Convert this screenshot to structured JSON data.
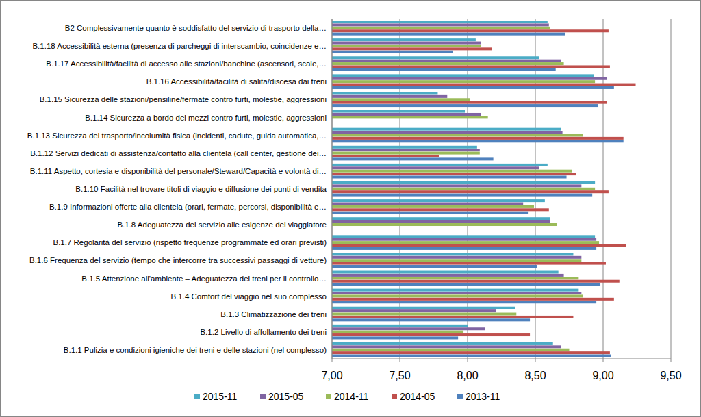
{
  "chart_data": {
    "type": "bar",
    "orientation": "horizontal",
    "grid": true,
    "legend": "bottom",
    "categories": [
      "B2 Complessivamente quanto è soddisfatto del servizio di trasporto della…",
      "B.1.18 Accessibilità esterna (presenza di parcheggi di interscambio, coincidenze e…",
      "B.1.17 Accessibilità/facilità di accesso alle stazioni/banchine (ascensori, scale,…",
      "B.1.16 Accessibilità/facilità di salita/discesa dai treni",
      "B.1.15 Sicurezza delle stazioni/pensiline/fermate contro furti, molestie, aggressioni",
      "B.1.14 Sicurezza a bordo dei mezzi contro furti, molestie, aggressioni",
      "B.1.13 Sicurezza del trasporto/incolumità fisica (incidenti, cadute, guida automatica,…",
      "B.1.12 Servizi dedicati di assistenza/contatto alla clientela (call center, gestione dei…",
      "B.1.11 Aspetto, cortesia e disponibilità del personale/Steward/Capacità e volontà di…",
      "B.1.10 Facilità nel trovare titoli di viaggio e diffusione dei punti di vendita",
      "B.1.9 Informazioni offerte alla clientela (orari, fermate, percorsi, disponibilità e…",
      "B.1.8 Adeguatezza del servizio alle esigenze del viaggiatore",
      "B.1.7 Regolarità del servizio (rispetto frequenze programmate ed orari previsti)",
      "B.1.6 Frequenza del servizio (tempo che intercorre tra successivi passaggi di vetture)",
      "B.1.5 Attenzione all'ambiente – Adeguatezza dei treni per il controllo…",
      "B.1.4 Comfort del viaggio nel suo complesso",
      "B.1.3 Climatizzazione dei treni",
      "B.1.2 Livello di affollamento dei treni",
      "B.1.1 Pulizia e condizioni igieniche dei treni e delle stazioni (nel complesso)"
    ],
    "series": [
      {
        "name": "2015-11",
        "color": "#4bacc6",
        "values": [
          8.59,
          8.06,
          8.53,
          8.93,
          7.78,
          7.98,
          8.69,
          8.07,
          8.59,
          8.94,
          8.57,
          8.61,
          8.94,
          8.78,
          8.67,
          8.82,
          8.35,
          8.0,
          8.63
        ]
      },
      {
        "name": "2015-05",
        "color": "#8064a2",
        "values": [
          8.6,
          8.1,
          8.69,
          9.03,
          7.85,
          8.1,
          8.7,
          8.09,
          8.53,
          8.84,
          8.41,
          8.61,
          8.95,
          8.84,
          8.71,
          8.84,
          8.21,
          8.13,
          8.69
        ]
      },
      {
        "name": "2014-11",
        "color": "#9bbb59",
        "values": [
          8.61,
          8.1,
          8.71,
          8.94,
          8.02,
          8.15,
          8.85,
          8.09,
          8.77,
          8.94,
          8.49,
          8.66,
          8.97,
          8.84,
          8.82,
          8.85,
          8.36,
          7.97,
          8.75
        ]
      },
      {
        "name": "2014-05",
        "color": "#c0504d",
        "values": [
          9.04,
          8.18,
          9.05,
          9.24,
          9.03,
          null,
          9.15,
          7.79,
          8.8,
          9.04,
          8.6,
          null,
          9.17,
          9.02,
          9.12,
          9.08,
          8.78,
          8.46,
          9.05
        ]
      },
      {
        "name": "2013-11",
        "color": "#4f81bd",
        "values": [
          8.72,
          7.89,
          8.65,
          9.08,
          8.96,
          null,
          9.15,
          8.19,
          8.73,
          8.92,
          8.45,
          null,
          8.95,
          8.51,
          8.98,
          8.95,
          8.46,
          7.93,
          9.06
        ]
      }
    ],
    "xlim": [
      7,
      9.5
    ],
    "xticks": [
      {
        "value": 7,
        "label": "7,00"
      },
      {
        "value": 7.5,
        "label": "7,50"
      },
      {
        "value": 8,
        "label": "8,00"
      },
      {
        "value": 8.5,
        "label": "8,50"
      },
      {
        "value": 9,
        "label": "9,00"
      },
      {
        "value": 9.5,
        "label": "9,50"
      }
    ]
  }
}
